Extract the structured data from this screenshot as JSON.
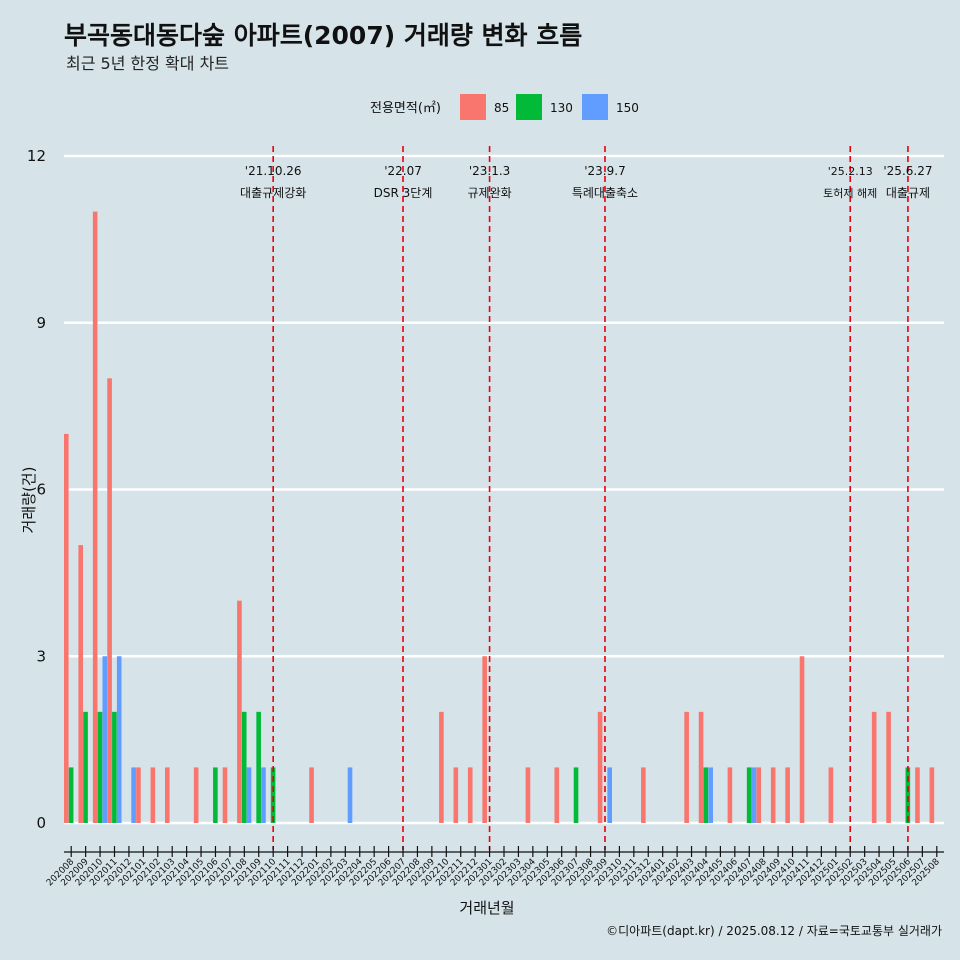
{
  "chart_data": {
    "type": "bar",
    "title": "부곡동대동다숲 아파트(2007) 거래량 변화 흐름",
    "subtitle": "최근 5년 한정 확대 차트",
    "xlabel": "거래년월",
    "ylabel": "거래량(건)",
    "ylim": [
      0,
      12
    ],
    "yticks": [
      0,
      3,
      6,
      9,
      12
    ],
    "grid": true,
    "legend": {
      "title": "전용면적(㎡)",
      "position": "top"
    },
    "categories": [
      "202008",
      "202009",
      "202010",
      "202011",
      "202012",
      "202101",
      "202102",
      "202103",
      "202104",
      "202105",
      "202106",
      "202107",
      "202108",
      "202109",
      "202110",
      "202111",
      "202112",
      "202201",
      "202202",
      "202203",
      "202204",
      "202205",
      "202206",
      "202207",
      "202208",
      "202209",
      "202210",
      "202211",
      "202212",
      "202301",
      "202302",
      "202303",
      "202304",
      "202305",
      "202306",
      "202307",
      "202308",
      "202309",
      "202310",
      "202311",
      "202312",
      "202401",
      "202402",
      "202403",
      "202404",
      "202405",
      "202406",
      "202407",
      "202408",
      "202409",
      "202410",
      "202411",
      "202412",
      "202501",
      "202502",
      "202503",
      "202504",
      "202505",
      "202506",
      "202507",
      "202508"
    ],
    "series": [
      {
        "name": "85",
        "color": "#f8766d",
        "values": [
          7,
          5,
          11,
          8,
          0,
          1,
          1,
          1,
          0,
          1,
          0,
          1,
          4,
          0,
          0,
          0,
          0,
          1,
          0,
          0,
          0,
          0,
          0,
          0,
          0,
          0,
          2,
          1,
          1,
          3,
          0,
          0,
          1,
          0,
          1,
          0,
          0,
          2,
          0,
          0,
          1,
          0,
          0,
          2,
          2,
          0,
          1,
          0,
          1,
          1,
          1,
          3,
          0,
          1,
          0,
          0,
          2,
          2,
          0,
          1,
          1
        ]
      },
      {
        "name": "130",
        "color": "#00ba38",
        "values": [
          1,
          2,
          2,
          2,
          0,
          0,
          0,
          0,
          0,
          0,
          1,
          0,
          2,
          2,
          1,
          0,
          0,
          0,
          0,
          0,
          0,
          0,
          0,
          0,
          0,
          0,
          0,
          0,
          0,
          0,
          0,
          0,
          0,
          0,
          0,
          1,
          0,
          0,
          0,
          0,
          0,
          0,
          0,
          0,
          1,
          0,
          0,
          1,
          0,
          0,
          0,
          0,
          0,
          0,
          0,
          0,
          0,
          0,
          1,
          0,
          0
        ]
      },
      {
        "name": "150",
        "color": "#619cff",
        "values": [
          0,
          0,
          3,
          3,
          1,
          0,
          0,
          0,
          0,
          0,
          0,
          0,
          1,
          1,
          0,
          0,
          0,
          0,
          0,
          1,
          0,
          0,
          0,
          0,
          0,
          0,
          0,
          0,
          0,
          0,
          0,
          0,
          0,
          0,
          0,
          0,
          0,
          1,
          0,
          0,
          0,
          0,
          0,
          0,
          1,
          0,
          0,
          1,
          0,
          0,
          0,
          0,
          0,
          0,
          0,
          0,
          0,
          0,
          0,
          0,
          0
        ]
      }
    ],
    "annotations": [
      {
        "date": "'21.10.26",
        "label": "대출규제강화",
        "month": "202110"
      },
      {
        "date": "'22.07",
        "label": "DSR 3단계",
        "month": "202207"
      },
      {
        "date": "'23.1.3",
        "label": "규제완화",
        "month": "202301"
      },
      {
        "date": "'23.9.7",
        "label": "특례대출축소",
        "month": "202309"
      },
      {
        "date": "'25.2.13",
        "label": "토허제 해제",
        "month": "202502"
      },
      {
        "date": "'25.6.27",
        "label": "대출규제",
        "month": "202506"
      }
    ],
    "caption": "©디아파트(dapt.kr) / 2025.08.12 / 자료=국토교통부 실거래가"
  }
}
